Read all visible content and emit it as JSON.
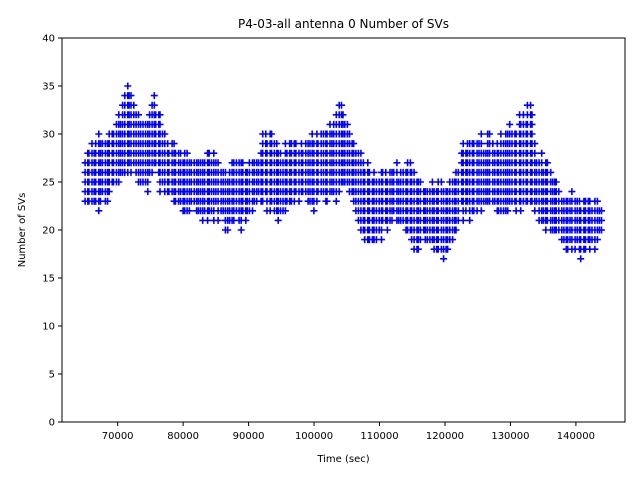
{
  "chart_data": {
    "type": "scatter",
    "title": "P4-03-all antenna 0 Number of SVs",
    "xlabel": "Time (sec)",
    "ylabel": "Number of SVs",
    "xlim": [
      61500,
      147500
    ],
    "ylim": [
      0,
      40
    ],
    "xticks": [
      70000,
      80000,
      90000,
      100000,
      110000,
      120000,
      130000,
      140000
    ],
    "yticks": [
      0,
      5,
      10,
      15,
      20,
      25,
      30,
      35,
      40
    ],
    "marker": "+",
    "color": "#0000ff",
    "series": [
      {
        "name": "antenna 0",
        "envelope": {
          "x": [
            65000,
            66500,
            68000,
            69000,
            70500,
            71500,
            72500,
            73500,
            74500,
            75500,
            76500,
            77500,
            78500,
            80000,
            82000,
            83500,
            85000,
            86500,
            88000,
            89500,
            91000,
            92500,
            94000,
            95000,
            96500,
            98000,
            100000,
            102000,
            104000,
            105000,
            106500,
            108000,
            109000,
            110500,
            112000,
            113500,
            115000,
            116500,
            118000,
            119500,
            121000,
            122500,
            124000,
            125500,
            127000,
            128500,
            130000,
            131500,
            133000,
            134000,
            135500,
            137000,
            138500,
            140000,
            141500,
            143000,
            144000
          ],
          "max": [
            27,
            29,
            29,
            30,
            32,
            35,
            33,
            31,
            31,
            33,
            31,
            29,
            28,
            28,
            27,
            28,
            27,
            26,
            27,
            27,
            26,
            30,
            29,
            28,
            29,
            28,
            30,
            30,
            33,
            31,
            28,
            26,
            26,
            26,
            26,
            26,
            26,
            24,
            24,
            24,
            25,
            28,
            29,
            29,
            29,
            29,
            30,
            31,
            33,
            27,
            27,
            25,
            23,
            23,
            23,
            23,
            21
          ],
          "min": [
            23,
            23,
            23,
            24,
            26,
            27,
            26,
            25,
            25,
            27,
            25,
            24,
            23,
            22,
            22,
            21,
            22,
            21,
            21,
            21,
            23,
            23,
            22,
            22,
            23,
            24,
            23,
            23,
            24,
            25,
            22,
            19,
            19,
            20,
            21,
            21,
            19,
            19,
            19,
            18,
            19,
            22,
            22,
            23,
            23,
            22,
            23,
            22,
            23,
            22,
            20,
            20,
            18,
            18,
            18,
            18,
            20
          ]
        }
      }
    ]
  }
}
